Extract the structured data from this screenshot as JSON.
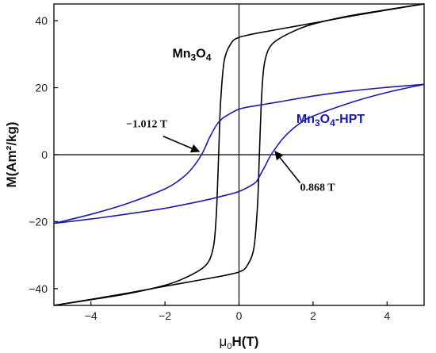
{
  "chart_data": {
    "type": "line",
    "xlabel_prefix": "μ",
    "xlabel_sub": "0",
    "xlabel_suffix": "H(T)",
    "ylabel": "M(Am²/kg)",
    "xlim": [
      -5,
      5
    ],
    "ylim": [
      -45,
      45
    ],
    "xticks": [
      -4,
      -2,
      0,
      2,
      4
    ],
    "yticks": [
      -40,
      -20,
      0,
      20,
      40
    ],
    "grid": false,
    "series": [
      {
        "name": "Mn3O4",
        "color": "#000000",
        "label_main": "Mn",
        "label_sub1": "3",
        "label_mid": "O",
        "label_sub2": "4",
        "label_suffix": "",
        "upper_branch": {
          "x": [
            5,
            4,
            3,
            2,
            1,
            0.5,
            0.2,
            0,
            -0.2,
            -0.4,
            -0.5,
            -0.55,
            -0.6,
            -0.65,
            -0.7,
            -0.8,
            -1,
            -1.5,
            -2,
            -3,
            -4,
            -5
          ],
          "y": [
            45,
            43.2,
            41.3,
            39.3,
            37.3,
            36.3,
            35.6,
            35.0,
            33.5,
            28.0,
            15.0,
            0,
            -15.0,
            -24.0,
            -28.0,
            -31.5,
            -34.0,
            -37.0,
            -39.0,
            -41.5,
            -43.3,
            -45
          ]
        },
        "lower_branch": {
          "x": [
            -5,
            -4,
            -3,
            -2,
            -1,
            -0.5,
            -0.2,
            0,
            0.2,
            0.4,
            0.5,
            0.55,
            0.6,
            0.65,
            0.7,
            0.8,
            1,
            1.5,
            2,
            3,
            4,
            5
          ],
          "y": [
            -45,
            -43.2,
            -41.3,
            -39.3,
            -37.3,
            -36.3,
            -35.6,
            -35.0,
            -33.5,
            -28.0,
            -15.0,
            0,
            15.0,
            24.0,
            28.0,
            31.5,
            34.0,
            37.0,
            39.0,
            41.5,
            43.3,
            45
          ]
        }
      },
      {
        "name": "Mn3O4-HPT",
        "color": "#1a1aaa",
        "label_main": "Mn",
        "label_sub1": "3",
        "label_mid": "O",
        "label_sub2": "4",
        "label_suffix": "-HPT",
        "upper_branch": {
          "x": [
            5,
            4,
            3,
            2,
            1,
            0.5,
            0,
            -0.4,
            -0.5,
            -0.6,
            -0.8,
            -1.012,
            -1.3,
            -1.6,
            -2,
            -3,
            -4,
            -5
          ],
          "y": [
            21,
            20.1,
            19.0,
            17.5,
            15.6,
            14.7,
            13.6,
            11.2,
            10.2,
            9.0,
            5.0,
            0,
            -4.5,
            -7.5,
            -10.2,
            -14.5,
            -17.8,
            -20.5
          ]
        },
        "lower_branch": {
          "x": [
            -5,
            -4,
            -3,
            -2,
            -1,
            -0.5,
            0,
            0.4,
            0.5,
            0.6,
            0.7,
            0.868,
            1.2,
            1.6,
            2,
            3,
            4,
            5
          ],
          "y": [
            -20.5,
            -19.2,
            -17.7,
            -16.0,
            -13.8,
            -12.5,
            -11.0,
            -8.7,
            -7.5,
            -5.5,
            -3.5,
            0,
            5.0,
            9.0,
            11.5,
            15.5,
            18.6,
            21
          ]
        }
      }
    ],
    "annotations": [
      {
        "text": "−1.012 T",
        "target_x": -1.012,
        "target_y": 0
      },
      {
        "text": "0.868 T",
        "target_x": 0.868,
        "target_y": 0
      }
    ]
  }
}
